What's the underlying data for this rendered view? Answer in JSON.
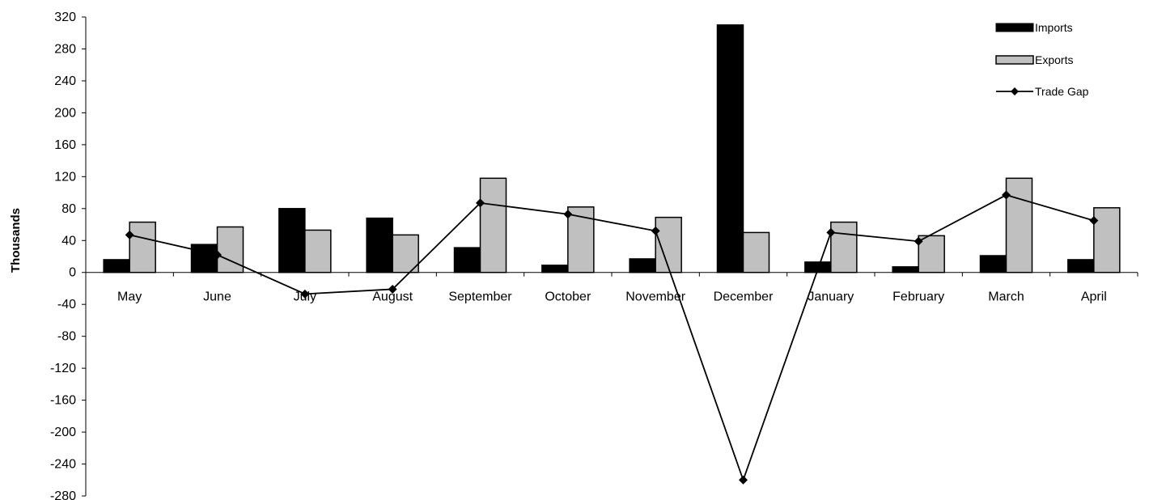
{
  "chart_data": {
    "type": "bar",
    "categories": [
      "May",
      "June",
      "July",
      "August",
      "September",
      "October",
      "November",
      "December",
      "January",
      "February",
      "March",
      "April"
    ],
    "series": [
      {
        "name": "Imports",
        "type": "bar",
        "color": "#000000",
        "values": [
          16,
          35,
          80,
          68,
          31,
          9,
          17,
          310,
          13,
          7,
          21,
          16
        ]
      },
      {
        "name": "Exports",
        "type": "bar",
        "color": "#c0c0c0",
        "values": [
          63,
          57,
          53,
          47,
          118,
          82,
          69,
          50,
          63,
          46,
          118,
          81
        ]
      },
      {
        "name": "Trade Gap",
        "type": "line",
        "color": "#000000",
        "values": [
          47,
          22,
          -27,
          -21,
          87,
          73,
          52,
          -260,
          50,
          39,
          97,
          65
        ]
      }
    ],
    "title": "",
    "xlabel": "",
    "ylabel": "Thousands",
    "ylim": [
      -280,
      320
    ],
    "yticks": [
      320,
      280,
      240,
      200,
      160,
      120,
      80,
      40,
      0,
      -40,
      -80,
      -120,
      -160,
      -200,
      -240,
      -280
    ],
    "legend_position": "top-right",
    "grid": false
  }
}
